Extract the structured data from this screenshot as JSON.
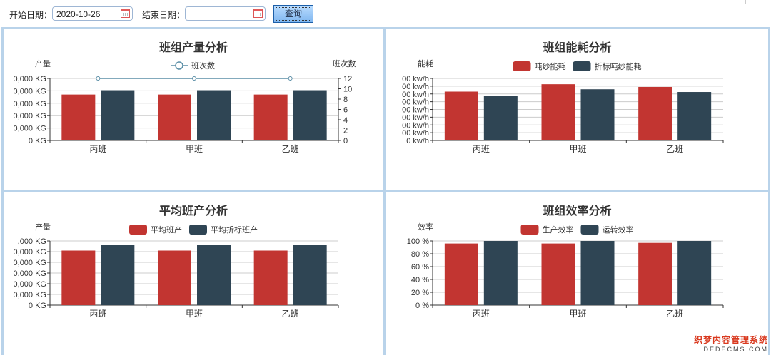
{
  "toolbar": {
    "start_label": "开始日期：",
    "start_value": "2020-10-26",
    "end_label": "结束日期：",
    "end_value": "",
    "query_label": "查询"
  },
  "watermark": {
    "line1": "织梦内容管理系统",
    "line2": "DEDECMS.COM"
  },
  "colors": {
    "red": "#c23531",
    "dark": "#2f4554",
    "line": "#5a8ea6"
  },
  "charts": [
    {
      "id": "p1",
      "title": "班组产量分析",
      "ylabel": "产量",
      "y2label": "班次数",
      "legend": [
        "班次数"
      ],
      "legend_type": "line",
      "categories": [
        "丙班",
        "甲班",
        "乙班"
      ],
      "yticks": [
        "0 KG",
        "0,000 KG",
        "0,000 KG",
        "0,000 KG",
        "0,000 KG",
        "0,000 KG"
      ],
      "y2ticks": [
        "0",
        "2",
        "4",
        "6",
        "8",
        "10",
        "12"
      ],
      "ymax": 5,
      "series": [
        {
          "values": [
            3.7,
            3.7,
            3.7
          ]
        },
        {
          "values": [
            4.05,
            4.05,
            4.05
          ]
        }
      ],
      "line": {
        "name": "班次数",
        "values": [
          12,
          12,
          12
        ],
        "max": 12
      }
    },
    {
      "id": "p2",
      "title": "班组能耗分析",
      "ylabel": "能耗",
      "legend": [
        "吨纱能耗",
        "折标吨纱能耗"
      ],
      "legend_type": "bar",
      "categories": [
        "丙班",
        "甲班",
        "乙班"
      ],
      "yticks": [
        "0 kw/h",
        "00 kw/h",
        "00 kw/h",
        "00 kw/h",
        "00 kw/h",
        "00 kw/h",
        "00 kw/h",
        "00 kw/h",
        "00 kw/h"
      ],
      "ymax": 8,
      "series": [
        {
          "name": "吨纱能耗",
          "values": [
            6.3,
            7.25,
            6.9
          ]
        },
        {
          "name": "折标吨纱能耗",
          "values": [
            5.75,
            6.6,
            6.25
          ]
        }
      ]
    },
    {
      "id": "p3",
      "title": "平均班产分析",
      "ylabel": "产量",
      "legend": [
        "平均班产",
        "平均折标班产"
      ],
      "legend_type": "bar",
      "categories": [
        "丙班",
        "甲班",
        "乙班"
      ],
      "yticks": [
        "0 KG",
        "0,000 KG",
        "0,000 KG",
        "0,000 KG",
        "0,000 KG",
        "0,000 KG",
        ",000 KG"
      ],
      "ymax": 6,
      "series": [
        {
          "name": "平均班产",
          "values": [
            5.1,
            5.1,
            5.1
          ]
        },
        {
          "name": "平均折标班产",
          "values": [
            5.6,
            5.6,
            5.6
          ]
        }
      ]
    },
    {
      "id": "p4",
      "title": "班组效率分析",
      "ylabel": "效率",
      "legend": [
        "生产效率",
        "运转效率"
      ],
      "legend_type": "bar",
      "categories": [
        "丙班",
        "甲班",
        "乙班"
      ],
      "yticks": [
        "0 %",
        "20 %",
        "40 %",
        "60 %",
        "80 %",
        "100 %"
      ],
      "ymax": 100,
      "series": [
        {
          "name": "生产效率",
          "values": [
            96,
            96,
            97
          ]
        },
        {
          "name": "运转效率",
          "values": [
            100,
            100,
            100
          ]
        }
      ]
    }
  ]
}
